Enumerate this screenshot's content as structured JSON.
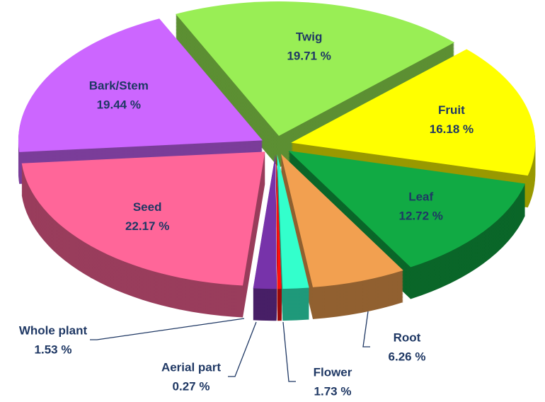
{
  "chart_data": {
    "type": "pie",
    "categories": [
      "Twig",
      "Fruit",
      "Leaf",
      "Root",
      "Flower",
      "Aerial part",
      "Whole plant",
      "Seed",
      "Bark/Stem"
    ],
    "values": [
      19.71,
      16.18,
      12.72,
      6.26,
      1.73,
      0.27,
      1.53,
      22.17,
      19.44
    ],
    "value_labels": [
      "19.71 %",
      "16.18 %",
      "12.72 %",
      "6.26 %",
      "1.73 %",
      "0.27 %",
      "1.53 %",
      "22.17 %",
      "19.44 %"
    ],
    "colors": [
      "#99ee55",
      "#ffff00",
      "#11aa44",
      "#f2a050",
      "#33ffcc",
      "#ff1010",
      "#7733aa",
      "#ff6699",
      "#cc66ff"
    ]
  }
}
